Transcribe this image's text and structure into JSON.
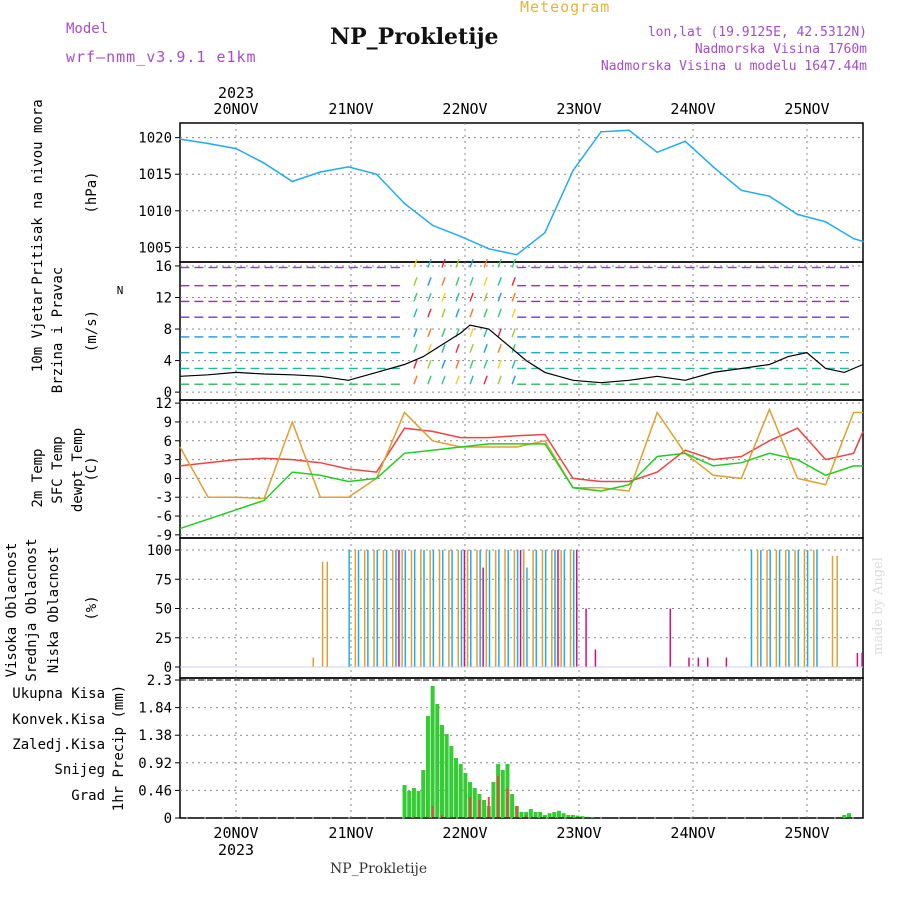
{
  "header": {
    "model_label": "Model",
    "model_name": "wrf—nmm_v3.9.1  e1km",
    "title": "NP_Prokletije",
    "subtitle": "Meteogram",
    "info_line1": "lon,lat (19.9125E, 42.5312N)",
    "info_line2": "Nadmorska Visina 1760m",
    "info_line3": "Nadmorska Visina u modelu 1647.44m"
  },
  "footer": {
    "station": "NP_Prokletije",
    "credit": "made by Angel"
  },
  "colors": {
    "pressure": "#22aaee",
    "t2m": "#ee4444",
    "sfc": "#e0a030",
    "dew": "#22cc22",
    "cloud_high": "#22aaee",
    "cloud_mid": "#e0a030",
    "cloud_low": "#cc1188",
    "precip_total": "#33cc33",
    "precip_conv": "#ee4444",
    "precip_frozen": "#ee7733",
    "snow": "#5555dd",
    "graupel": "#33cccc",
    "wind_label": "#22cc22",
    "wind_arrow": "#aa44cc"
  },
  "chart_data": [
    {
      "type": "line",
      "panel": "pressure",
      "ylabel_left": "Pritisak na nivou mora",
      "unit": "(hPa)",
      "ylim": [
        1003,
        1022
      ],
      "yticks": [
        1005,
        1010,
        1015,
        1020
      ],
      "x_labels_top": [
        "20NOV",
        "21NOV",
        "22NOV",
        "23NOV",
        "24NOV",
        "25NOV"
      ],
      "year_top": "2023",
      "series": [
        {
          "x": [
            0,
            6,
            12,
            18,
            24,
            30,
            36,
            42,
            48,
            54,
            60,
            66,
            72,
            78,
            84,
            90,
            96,
            102,
            108,
            114,
            120,
            126,
            132,
            138,
            144,
            146
          ],
          "y": [
            1019.8,
            1019.2,
            1018.5,
            1016.5,
            1014.0,
            1015.3,
            1016.0,
            1015.0,
            1011.0,
            1008.0,
            1006.5,
            1004.8,
            1004.0,
            1007.0,
            1015.5,
            1020.8,
            1021.0,
            1018.0,
            1019.5,
            1016.0,
            1012.8,
            1012.0,
            1009.5,
            1008.5,
            1006.2,
            1005.8
          ]
        }
      ]
    },
    {
      "type": "line",
      "panel": "wind",
      "ylabel_left": [
        "10m Vjetar",
        "Brzina i Pravac"
      ],
      "unit": "(m/s)",
      "compass": "N",
      "ylim": [
        -1,
        16.5
      ],
      "yticks": [
        0,
        4,
        8,
        12,
        16
      ],
      "series": [
        {
          "name": "wind speed",
          "x": [
            0,
            6,
            12,
            18,
            24,
            30,
            36,
            42,
            48,
            52,
            56,
            60,
            62,
            66,
            70,
            74,
            78,
            84,
            90,
            96,
            102,
            108,
            114,
            120,
            126,
            130,
            134,
            138,
            142,
            146
          ],
          "y": [
            2.0,
            2.2,
            2.5,
            2.3,
            2.2,
            2.0,
            1.5,
            2.5,
            3.5,
            4.5,
            6.0,
            7.5,
            8.5,
            8.0,
            6.0,
            4.0,
            2.5,
            1.5,
            1.2,
            1.5,
            2.0,
            1.5,
            2.5,
            3.0,
            3.5,
            4.5,
            5.0,
            3.0,
            2.5,
            3.5
          ]
        }
      ]
    },
    {
      "type": "line",
      "panel": "temperature",
      "ylabel_left": [
        "2m Temp",
        "SFC Temp",
        "dewpt Temp"
      ],
      "unit": "(C)",
      "ylim": [
        -9.5,
        12.5
      ],
      "yticks": [
        -9,
        -6,
        -3,
        0,
        3,
        6,
        9,
        12
      ],
      "series": [
        {
          "name": "2m Temp",
          "x": [
            0,
            6,
            12,
            18,
            24,
            30,
            36,
            42,
            48,
            54,
            60,
            66,
            72,
            78,
            84,
            90,
            96,
            102,
            108,
            114,
            120,
            126,
            132,
            138,
            144,
            146
          ],
          "y": [
            2.0,
            2.5,
            3.0,
            3.2,
            3.0,
            2.5,
            1.5,
            1.0,
            8.0,
            7.5,
            6.5,
            6.5,
            6.8,
            7.0,
            0.0,
            -0.5,
            -0.5,
            1.0,
            4.5,
            3.0,
            3.5,
            6.0,
            8.0,
            3.0,
            4.0,
            7.5
          ]
        },
        {
          "name": "SFC Temp",
          "x": [
            0,
            6,
            12,
            18,
            24,
            30,
            36,
            42,
            48,
            54,
            60,
            66,
            72,
            78,
            84,
            90,
            96,
            102,
            108,
            114,
            120,
            126,
            132,
            138,
            144,
            146
          ],
          "y": [
            5.0,
            -3.0,
            -3.0,
            -3.2,
            9.0,
            -3.0,
            -3.0,
            0.0,
            10.5,
            6.0,
            5.0,
            5.0,
            5.0,
            6.0,
            -1.5,
            -1.5,
            -2.0,
            10.5,
            4.0,
            0.5,
            0.0,
            11.0,
            0.0,
            -1.0,
            10.5,
            10.5
          ]
        },
        {
          "name": "dewpt Temp",
          "x": [
            0,
            6,
            12,
            18,
            24,
            30,
            36,
            42,
            48,
            54,
            60,
            66,
            72,
            78,
            84,
            90,
            96,
            102,
            108,
            114,
            120,
            126,
            132,
            138,
            144,
            146
          ],
          "y": [
            -8.0,
            -6.5,
            -5.0,
            -3.5,
            1.0,
            0.5,
            -0.5,
            0.0,
            4.0,
            4.5,
            5.0,
            5.5,
            5.5,
            5.5,
            -1.5,
            -2.0,
            -1.0,
            3.5,
            4.0,
            2.0,
            2.5,
            4.0,
            3.0,
            0.5,
            2.0,
            2.0
          ]
        }
      ]
    },
    {
      "type": "bar",
      "panel": "cloud",
      "ylabel_left": [
        "Visoka Oblacnost",
        "Srednja Oblacnost",
        "Niska Oblacnost"
      ],
      "unit": "(%)",
      "ylim": [
        0,
        100
      ],
      "yticks": [
        0,
        25,
        50,
        75,
        100
      ],
      "series": [
        {
          "name": "Visoka Oblacnost",
          "x": [
            36,
            38,
            40,
            42,
            44,
            46,
            48,
            50,
            52,
            54,
            56,
            58,
            60,
            62,
            64,
            66,
            68,
            70,
            72,
            74,
            76,
            78,
            80,
            82,
            84,
            122,
            124,
            126,
            128,
            130,
            132,
            134,
            136
          ],
          "y": [
            100,
            100,
            100,
            100,
            100,
            100,
            100,
            100,
            100,
            100,
            100,
            100,
            100,
            100,
            100,
            100,
            100,
            100,
            100,
            85,
            100,
            100,
            100,
            100,
            100,
            100,
            100,
            100,
            100,
            100,
            100,
            100,
            100
          ]
        },
        {
          "name": "Srednja Oblacnost",
          "x": [
            28,
            30,
            31,
            37,
            39,
            41,
            43,
            45,
            47,
            49,
            51,
            53,
            55,
            57,
            59,
            61,
            63,
            65,
            67,
            69,
            71,
            73,
            75,
            77,
            79,
            81,
            83,
            123,
            125,
            127,
            129,
            131,
            133,
            135,
            139,
            140
          ],
          "y": [
            8,
            90,
            90,
            100,
            100,
            100,
            100,
            100,
            100,
            100,
            100,
            100,
            100,
            100,
            100,
            100,
            100,
            100,
            100,
            100,
            100,
            100,
            100,
            100,
            100,
            100,
            100,
            100,
            100,
            100,
            100,
            100,
            100,
            100,
            95,
            95
          ]
        },
        {
          "name": "Niska Oblacnost",
          "x": [
            46,
            60,
            64,
            72,
            80,
            84,
            86,
            88,
            104,
            108,
            110,
            112,
            116,
            144,
            145
          ],
          "y": [
            100,
            100,
            85,
            100,
            100,
            100,
            50,
            15,
            50,
            8,
            8,
            8,
            8,
            12,
            12
          ]
        }
      ]
    },
    {
      "type": "bar",
      "panel": "precip",
      "ylabel_left": [
        "Ukupna Kisa",
        "Konvek.Kisa",
        "Zaledj.Kisa",
        "Snijeg",
        "Grad"
      ],
      "unit": "1hr Precip (mm)",
      "ylim": [
        0,
        2.3
      ],
      "yticks": [
        0,
        0.46,
        0.92,
        1.38,
        1.84,
        2.3
      ],
      "x_labels_bottom": [
        "20NOV",
        "21NOV",
        "22NOV",
        "23NOV",
        "24NOV",
        "25NOV"
      ],
      "year_bottom": "2023",
      "series": [
        {
          "name": "Ukupna Kisa",
          "x": [
            48,
            49,
            50,
            51,
            52,
            53,
            54,
            55,
            56,
            57,
            58,
            59,
            60,
            61,
            62,
            63,
            64,
            65,
            66,
            67,
            68,
            69,
            70,
            71,
            72,
            73,
            74,
            75,
            76,
            77,
            78,
            79,
            80,
            81,
            82,
            83,
            84,
            85,
            86,
            87,
            88,
            142,
            143
          ],
          "y": [
            0.55,
            0.45,
            0.5,
            0.45,
            0.8,
            1.7,
            2.2,
            1.9,
            1.55,
            1.4,
            1.2,
            1.0,
            0.9,
            0.75,
            0.6,
            0.5,
            0.4,
            0.3,
            0.2,
            0.6,
            0.9,
            0.8,
            0.9,
            0.4,
            0.2,
            0.1,
            0.1,
            0.15,
            0.1,
            0.1,
            0.05,
            0.08,
            0.1,
            0.12,
            0.08,
            0.05,
            0.05,
            0.04,
            0.03,
            0.02,
            0.01,
            0.05,
            0.08
          ]
        },
        {
          "name": "Konvek.Kisa",
          "x": [
            50,
            54,
            56,
            62,
            64,
            66,
            68,
            70,
            72,
            74
          ],
          "y": [
            0.02,
            0.2,
            0.05,
            0.35,
            0.3,
            0.35,
            0.7,
            0.5,
            0.2,
            0.05
          ]
        }
      ]
    }
  ]
}
